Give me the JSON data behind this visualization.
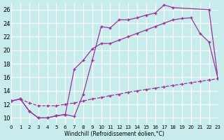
{
  "background_color": "#c8ecec",
  "grid_color": "#ffffff",
  "line_color": "#993399",
  "ylim": [
    9,
    27
  ],
  "xlim": [
    0,
    23
  ],
  "yticks": [
    10,
    12,
    14,
    16,
    18,
    20,
    22,
    24,
    26
  ],
  "xticks": [
    0,
    1,
    2,
    3,
    4,
    5,
    6,
    7,
    8,
    9,
    10,
    11,
    12,
    13,
    14,
    15,
    16,
    17,
    18,
    19,
    20,
    21,
    22,
    23
  ],
  "xlabel": "Windchill (Refroidissement éolien,°C)",
  "series": [
    {
      "x": [
        0,
        1,
        2,
        3,
        4,
        5,
        6,
        7,
        8,
        9,
        10,
        11,
        12,
        13,
        14,
        15,
        16,
        17,
        18,
        22,
        23
      ],
      "y": [
        12.5,
        12.8,
        11.0,
        10.0,
        10.0,
        10.3,
        10.5,
        10.2,
        13.5,
        18.5,
        23.5,
        23.3,
        24.5,
        24.5,
        24.8,
        25.2,
        25.5,
        26.7,
        26.3,
        26.0,
        15.8
      ],
      "linestyle": "-"
    },
    {
      "x": [
        0,
        1,
        2,
        3,
        4,
        5,
        6,
        7,
        8,
        9,
        10,
        11,
        12,
        13,
        14,
        15,
        16,
        17,
        18,
        19,
        20,
        21,
        22,
        23
      ],
      "y": [
        12.5,
        12.8,
        11.0,
        10.0,
        10.0,
        10.3,
        10.5,
        17.2,
        18.5,
        20.2,
        21.0,
        21.0,
        21.5,
        22.0,
        22.5,
        23.0,
        23.5,
        24.0,
        24.5,
        24.7,
        24.8,
        22.5,
        21.2,
        15.8
      ],
      "linestyle": "-"
    },
    {
      "x": [
        0,
        1,
        2,
        3,
        4,
        5,
        6,
        7,
        8,
        9,
        10,
        11,
        12,
        13,
        14,
        15,
        16,
        17,
        18,
        19,
        20,
        21,
        22,
        23
      ],
      "y": [
        12.5,
        12.8,
        12.2,
        11.8,
        11.8,
        11.8,
        12.0,
        12.2,
        12.5,
        12.8,
        13.0,
        13.3,
        13.5,
        13.8,
        14.0,
        14.2,
        14.4,
        14.6,
        14.8,
        15.0,
        15.2,
        15.4,
        15.6,
        15.8
      ],
      "linestyle": "--"
    }
  ]
}
